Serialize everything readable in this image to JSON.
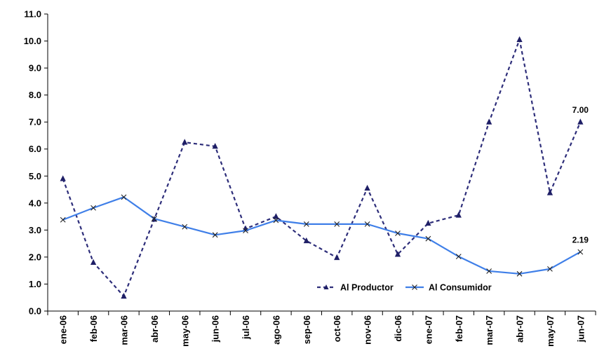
{
  "chart_data": {
    "type": "line",
    "categories": [
      "ene-06",
      "feb-06",
      "mar-06",
      "abr-06",
      "may-06",
      "jun-06",
      "jul-06",
      "ago-06",
      "sep-06",
      "oct-06",
      "nov-06",
      "dic-06",
      "ene-07",
      "feb-07",
      "mar-07",
      "abr-07",
      "may-07",
      "jun-07"
    ],
    "series": [
      {
        "name": "Al Productor",
        "values": [
          4.9,
          1.8,
          0.55,
          3.4,
          6.25,
          6.1,
          3.05,
          3.5,
          2.6,
          1.98,
          4.55,
          2.1,
          3.25,
          3.55,
          7.0,
          10.05,
          4.38,
          7.0
        ],
        "color": "#2E2E7A",
        "line_style": "dashed",
        "marker": "triangle"
      },
      {
        "name": "Al Consumidor",
        "values": [
          3.38,
          3.82,
          4.22,
          3.42,
          3.12,
          2.82,
          2.98,
          3.36,
          3.22,
          3.22,
          3.22,
          2.88,
          2.68,
          2.02,
          1.48,
          1.38,
          1.56,
          2.19
        ],
        "color": "#3F7FE8",
        "line_style": "solid",
        "marker": "x"
      }
    ],
    "data_labels": [
      {
        "series": "Al Productor",
        "category": "jun-07",
        "text": "7.00"
      },
      {
        "series": "Al Consumidor",
        "category": "jun-07",
        "text": "2.19"
      }
    ],
    "y_ticks": [
      "0.0",
      "1.0",
      "2.0",
      "3.0",
      "4.0",
      "5.0",
      "6.0",
      "7.0",
      "8.0",
      "9.0",
      "10.0",
      "11.0"
    ],
    "ylim": [
      0,
      11
    ],
    "title": "",
    "xlabel": "",
    "ylabel": "",
    "grid": false,
    "legend_position": "bottom-right"
  }
}
